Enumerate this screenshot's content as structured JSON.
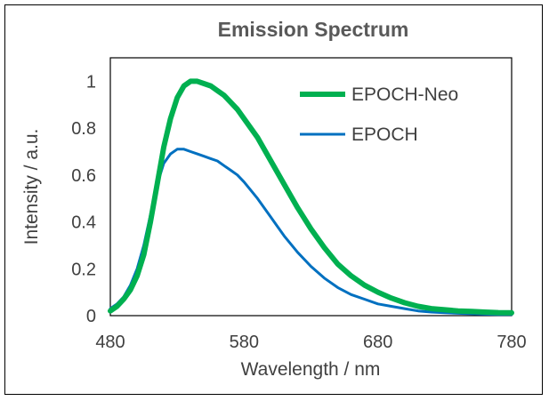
{
  "chart_data": {
    "type": "line",
    "title": "Emission Spectrum",
    "xlabel": "Wavelength / nm",
    "ylabel": "Intensity / a.u.",
    "xlim": [
      480,
      780
    ],
    "ylim": [
      0,
      1.1
    ],
    "xticks": [
      480,
      580,
      680,
      780
    ],
    "yticks": [
      0,
      0.2,
      0.4,
      0.6,
      0.8,
      1
    ],
    "ytick_labels": [
      "0",
      "0.2",
      "0.4",
      "0.6",
      "0.8",
      "1"
    ],
    "grid": false,
    "legend_position": "top-right",
    "series": [
      {
        "name": "EPOCH-Neo",
        "color": "#00B050",
        "x": [
          480,
          485,
          490,
          495,
          500,
          505,
          510,
          515,
          520,
          525,
          530,
          535,
          540,
          545,
          550,
          555,
          560,
          565,
          570,
          575,
          580,
          590,
          600,
          610,
          620,
          630,
          640,
          650,
          660,
          670,
          680,
          690,
          700,
          710,
          720,
          730,
          740,
          750,
          760,
          770,
          780
        ],
        "y": [
          0.02,
          0.04,
          0.07,
          0.11,
          0.17,
          0.26,
          0.4,
          0.56,
          0.72,
          0.84,
          0.93,
          0.98,
          1.0,
          1.0,
          0.99,
          0.98,
          0.96,
          0.94,
          0.91,
          0.88,
          0.84,
          0.76,
          0.66,
          0.56,
          0.46,
          0.37,
          0.29,
          0.22,
          0.17,
          0.13,
          0.1,
          0.075,
          0.055,
          0.04,
          0.03,
          0.025,
          0.02,
          0.018,
          0.015,
          0.013,
          0.012
        ]
      },
      {
        "name": "EPOCH",
        "color": "#0070C0",
        "x": [
          480,
          485,
          490,
          495,
          500,
          505,
          510,
          515,
          520,
          525,
          530,
          535,
          540,
          545,
          550,
          555,
          560,
          565,
          570,
          575,
          580,
          590,
          600,
          610,
          620,
          630,
          640,
          650,
          660,
          670,
          680,
          690,
          700,
          710,
          720,
          730,
          740,
          750,
          760,
          770,
          780
        ],
        "y": [
          0.03,
          0.05,
          0.08,
          0.13,
          0.2,
          0.3,
          0.43,
          0.56,
          0.65,
          0.69,
          0.71,
          0.71,
          0.7,
          0.69,
          0.68,
          0.67,
          0.66,
          0.64,
          0.62,
          0.6,
          0.57,
          0.5,
          0.42,
          0.34,
          0.27,
          0.21,
          0.16,
          0.12,
          0.09,
          0.07,
          0.05,
          0.04,
          0.03,
          0.02,
          0.015,
          0.012,
          0.01,
          0.008,
          0.006,
          0.005,
          0.005
        ]
      }
    ]
  }
}
